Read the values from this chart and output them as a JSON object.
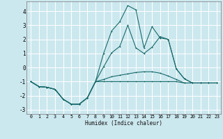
{
  "xlabel": "Humidex (Indice chaleur)",
  "ylabel": "",
  "bg_color": "#cce8ef",
  "grid_color": "#ffffff",
  "line_color": "#1a6b6b",
  "xlim": [
    -0.5,
    23.5
  ],
  "ylim": [
    -3.3,
    4.7
  ],
  "xticks": [
    0,
    1,
    2,
    3,
    4,
    5,
    6,
    7,
    8,
    9,
    10,
    11,
    12,
    13,
    14,
    15,
    16,
    17,
    18,
    19,
    20,
    21,
    22,
    23
  ],
  "yticks": [
    -3,
    -2,
    -1,
    0,
    1,
    2,
    3,
    4
  ],
  "series1_x": [
    0,
    1,
    2,
    3,
    4,
    5,
    6,
    7,
    8,
    9,
    10,
    11,
    12,
    13,
    14,
    15,
    16,
    17,
    18,
    19,
    20,
    21,
    22,
    23
  ],
  "series1_y": [
    -1.0,
    -1.35,
    -1.4,
    -1.55,
    -2.25,
    -2.6,
    -2.6,
    -2.15,
    -1.0,
    -1.0,
    -1.0,
    -1.0,
    -1.0,
    -1.0,
    -1.0,
    -1.0,
    -1.0,
    -1.0,
    -1.0,
    -1.1,
    -1.1,
    -1.1,
    -1.1,
    -1.1
  ],
  "series2_x": [
    0,
    1,
    2,
    3,
    4,
    5,
    6,
    7,
    8,
    9,
    10,
    11,
    12,
    13,
    14,
    15,
    16,
    17,
    18,
    19,
    20,
    21,
    22,
    23
  ],
  "series2_y": [
    -1.0,
    -1.35,
    -1.4,
    -1.55,
    -2.25,
    -2.6,
    -2.6,
    -2.15,
    -1.0,
    -0.85,
    -0.65,
    -0.55,
    -0.45,
    -0.35,
    -0.3,
    -0.3,
    -0.4,
    -0.6,
    -0.85,
    -1.1,
    -1.1,
    -1.1,
    -1.1,
    -1.1
  ],
  "series3_x": [
    0,
    1,
    2,
    3,
    4,
    5,
    6,
    7,
    8,
    9,
    10,
    11,
    12,
    13,
    14,
    15,
    16,
    17,
    18,
    19,
    20,
    21,
    22,
    23
  ],
  "series3_y": [
    -1.0,
    -1.35,
    -1.4,
    -1.55,
    -2.25,
    -2.6,
    -2.6,
    -2.15,
    -1.0,
    0.05,
    1.05,
    1.5,
    3.0,
    1.4,
    1.0,
    1.45,
    2.2,
    2.0,
    -0.1,
    -0.8,
    -1.1,
    -1.1,
    -1.1,
    -1.1
  ],
  "series4_x": [
    0,
    1,
    2,
    3,
    4,
    5,
    6,
    7,
    8,
    9,
    10,
    11,
    12,
    13,
    14,
    15,
    16,
    17,
    18,
    19,
    20,
    21,
    22,
    23
  ],
  "series4_y": [
    -1.0,
    -1.35,
    -1.4,
    -1.55,
    -2.25,
    -2.6,
    -2.6,
    -2.15,
    -1.0,
    1.0,
    2.6,
    3.25,
    4.4,
    4.1,
    1.4,
    2.9,
    2.1,
    2.0,
    -0.1,
    -0.8,
    -1.1,
    -1.1,
    -1.1,
    -1.1
  ]
}
